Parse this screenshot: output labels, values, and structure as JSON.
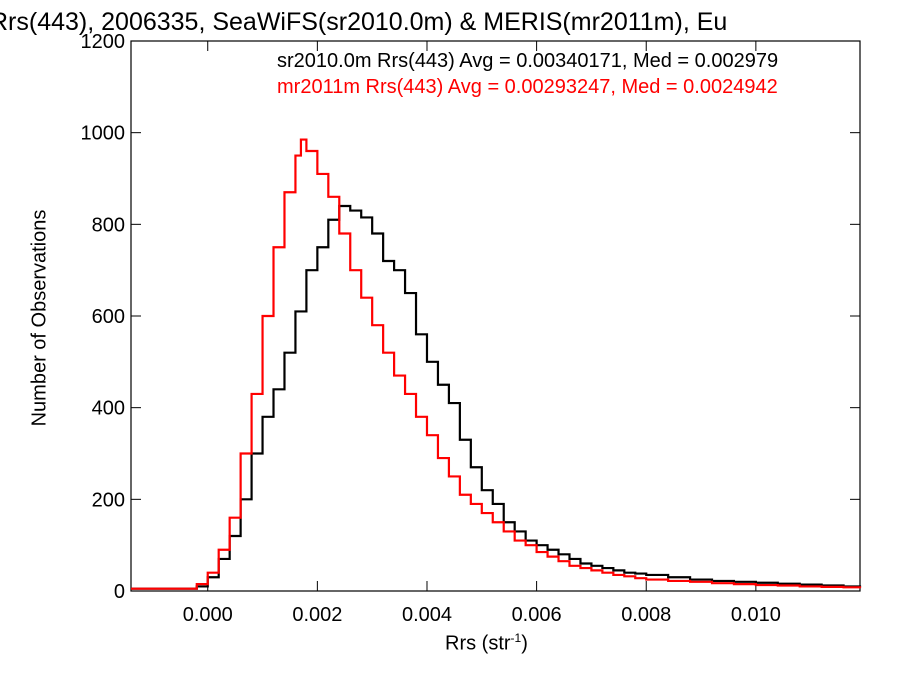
{
  "chart_data": {
    "type": "line",
    "style": "step-histogram",
    "title": "Rrs(443), 2006335, SeaWiFS(sr2010.0m) & MERIS(mr2011m), Eu",
    "xlabel": "Rrs (str",
    "xlabel_sup": "-1",
    "xlabel_tail": ")",
    "ylabel": "Number of Observations",
    "xlim": [
      -0.0014,
      0.0119
    ],
    "ylim": [
      0,
      1200
    ],
    "xticks": [
      0.0,
      0.002,
      0.004,
      0.006,
      0.008,
      0.01
    ],
    "xtick_labels": [
      "0.000",
      "0.002",
      "0.004",
      "0.006",
      "0.008",
      "0.010"
    ],
    "yticks": [
      0,
      200,
      400,
      600,
      800,
      1000,
      1200
    ],
    "ytick_labels": [
      "0",
      "200",
      "400",
      "600",
      "800",
      "1000",
      "1200"
    ],
    "annotations": [
      {
        "text": "sr2010.0m Rrs(443) Avg = 0.00340171, Med = 0.002979",
        "color": "#000000"
      },
      {
        "text": "mr2011m Rrs(443) Avg = 0.00293247, Med = 0.0024942",
        "color": "#ff0000"
      }
    ],
    "series": [
      {
        "color": "#000000",
        "x": [
          -0.0014,
          -0.001,
          -0.0006,
          -0.0002,
          0.0,
          0.0002,
          0.0004,
          0.0006,
          0.0008,
          0.001,
          0.0012,
          0.0014,
          0.0016,
          0.0018,
          0.002,
          0.0022,
          0.0024,
          0.0026,
          0.0028,
          0.003,
          0.0032,
          0.0034,
          0.0036,
          0.0038,
          0.004,
          0.0042,
          0.0044,
          0.0046,
          0.0048,
          0.005,
          0.0052,
          0.0054,
          0.0056,
          0.0058,
          0.006,
          0.0062,
          0.0064,
          0.0066,
          0.0068,
          0.007,
          0.0072,
          0.0074,
          0.0076,
          0.0078,
          0.008,
          0.0084,
          0.0088,
          0.0092,
          0.0096,
          0.01,
          0.0104,
          0.0108,
          0.0112,
          0.0116,
          0.0119
        ],
        "y": [
          5,
          5,
          5,
          10,
          30,
          70,
          120,
          200,
          300,
          380,
          440,
          520,
          610,
          700,
          750,
          810,
          840,
          830,
          815,
          780,
          720,
          700,
          650,
          560,
          500,
          450,
          410,
          330,
          270,
          220,
          190,
          150,
          130,
          110,
          100,
          90,
          80,
          70,
          60,
          55,
          50,
          45,
          40,
          38,
          35,
          30,
          25,
          22,
          20,
          18,
          16,
          14,
          12,
          10,
          8
        ]
      },
      {
        "color": "#ff0000",
        "x": [
          -0.0014,
          -0.001,
          -0.0006,
          -0.0002,
          0.0,
          0.0002,
          0.0004,
          0.0006,
          0.0008,
          0.001,
          0.0012,
          0.0014,
          0.0016,
          0.0017,
          0.0018,
          0.002,
          0.0022,
          0.0024,
          0.0026,
          0.0028,
          0.003,
          0.0032,
          0.0034,
          0.0036,
          0.0038,
          0.004,
          0.0042,
          0.0044,
          0.0046,
          0.0048,
          0.005,
          0.0052,
          0.0054,
          0.0056,
          0.0058,
          0.006,
          0.0062,
          0.0064,
          0.0066,
          0.0068,
          0.007,
          0.0072,
          0.0074,
          0.0076,
          0.0078,
          0.008,
          0.0084,
          0.0088,
          0.0092,
          0.0096,
          0.01,
          0.0104,
          0.0108,
          0.0112,
          0.0116,
          0.0119
        ],
        "y": [
          5,
          5,
          5,
          15,
          40,
          90,
          160,
          300,
          430,
          600,
          750,
          870,
          950,
          985,
          960,
          910,
          860,
          780,
          700,
          640,
          580,
          520,
          470,
          430,
          380,
          340,
          290,
          250,
          210,
          190,
          170,
          150,
          130,
          110,
          100,
          85,
          75,
          65,
          55,
          50,
          45,
          40,
          35,
          32,
          28,
          25,
          22,
          20,
          17,
          15,
          13,
          12,
          10,
          9,
          8,
          6
        ]
      }
    ]
  }
}
